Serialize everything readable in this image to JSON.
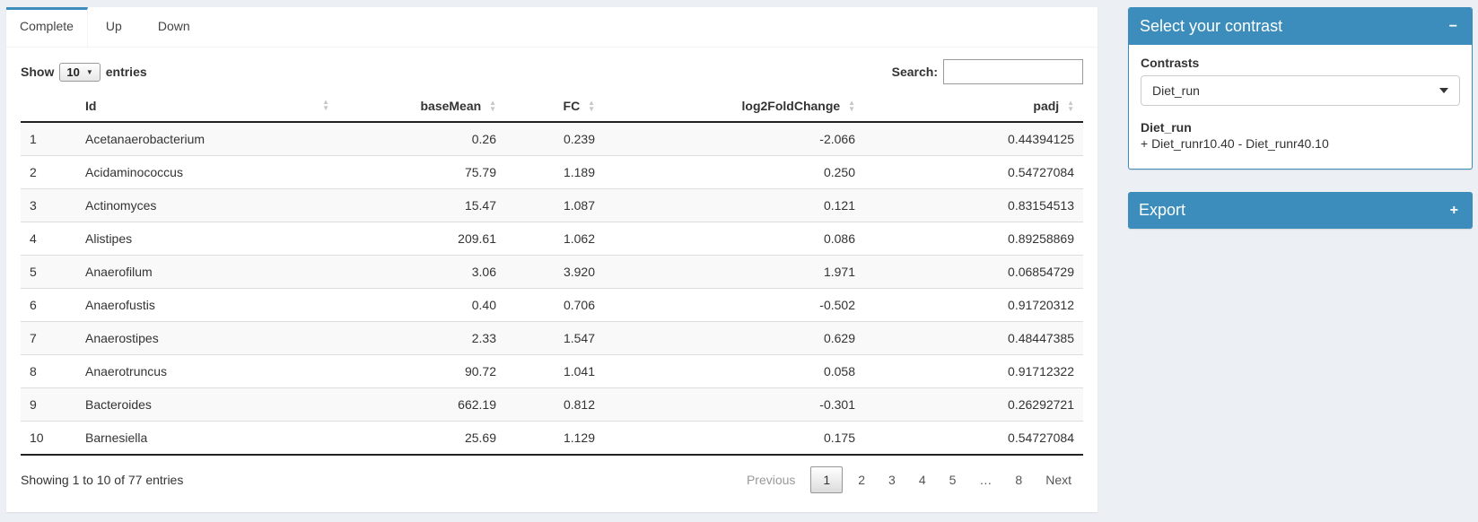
{
  "tabs": [
    {
      "label": "Complete"
    },
    {
      "label": "Up"
    },
    {
      "label": "Down"
    }
  ],
  "controls": {
    "show_label": "Show",
    "page_length": "10",
    "entries_label": "entries",
    "search_label": "Search:",
    "search_value": ""
  },
  "table": {
    "columns": {
      "id": "Id",
      "base_mean": "baseMean",
      "fc": "FC",
      "log2fc": "log2FoldChange",
      "padj": "padj"
    },
    "rows": [
      {
        "num": "1",
        "id": "Acetanaerobacterium",
        "base_mean": "0.26",
        "fc": "0.239",
        "log2fc": "-2.066",
        "padj": "0.44394125"
      },
      {
        "num": "2",
        "id": "Acidaminococcus",
        "base_mean": "75.79",
        "fc": "1.189",
        "log2fc": "0.250",
        "padj": "0.54727084"
      },
      {
        "num": "3",
        "id": "Actinomyces",
        "base_mean": "15.47",
        "fc": "1.087",
        "log2fc": "0.121",
        "padj": "0.83154513"
      },
      {
        "num": "4",
        "id": "Alistipes",
        "base_mean": "209.61",
        "fc": "1.062",
        "log2fc": "0.086",
        "padj": "0.89258869"
      },
      {
        "num": "5",
        "id": "Anaerofilum",
        "base_mean": "3.06",
        "fc": "3.920",
        "log2fc": "1.971",
        "padj": "0.06854729"
      },
      {
        "num": "6",
        "id": "Anaerofustis",
        "base_mean": "0.40",
        "fc": "0.706",
        "log2fc": "-0.502",
        "padj": "0.91720312"
      },
      {
        "num": "7",
        "id": "Anaerostipes",
        "base_mean": "2.33",
        "fc": "1.547",
        "log2fc": "0.629",
        "padj": "0.48447385"
      },
      {
        "num": "8",
        "id": "Anaerotruncus",
        "base_mean": "90.72",
        "fc": "1.041",
        "log2fc": "0.058",
        "padj": "0.91712322"
      },
      {
        "num": "9",
        "id": "Bacteroides",
        "base_mean": "662.19",
        "fc": "0.812",
        "log2fc": "-0.301",
        "padj": "0.26292721"
      },
      {
        "num": "10",
        "id": "Barnesiella",
        "base_mean": "25.69",
        "fc": "1.129",
        "log2fc": "0.175",
        "padj": "0.54727084"
      }
    ]
  },
  "footer": {
    "info": "Showing 1 to 10 of 77 entries",
    "previous": "Previous",
    "pages": [
      "1",
      "2",
      "3",
      "4",
      "5",
      "…",
      "8"
    ],
    "current_page": "1",
    "next": "Next"
  },
  "contrast_panel": {
    "title": "Select your contrast",
    "contrasts_label": "Contrasts",
    "selected_contrast": "Diet_run",
    "contrast_name": "Diet_run",
    "contrast_formula": "+ Diet_runr10.40 - Diet_runr40.10"
  },
  "export_panel": {
    "title": "Export"
  },
  "icons": {
    "sort_up": "▲",
    "sort_down": "▼",
    "collapse": "−",
    "expand": "+",
    "select_arrow": "▼"
  },
  "colors": {
    "primary": "#3c8dbc",
    "page_bg": "#ecf0f5",
    "stripe": "#f9f9f9"
  }
}
